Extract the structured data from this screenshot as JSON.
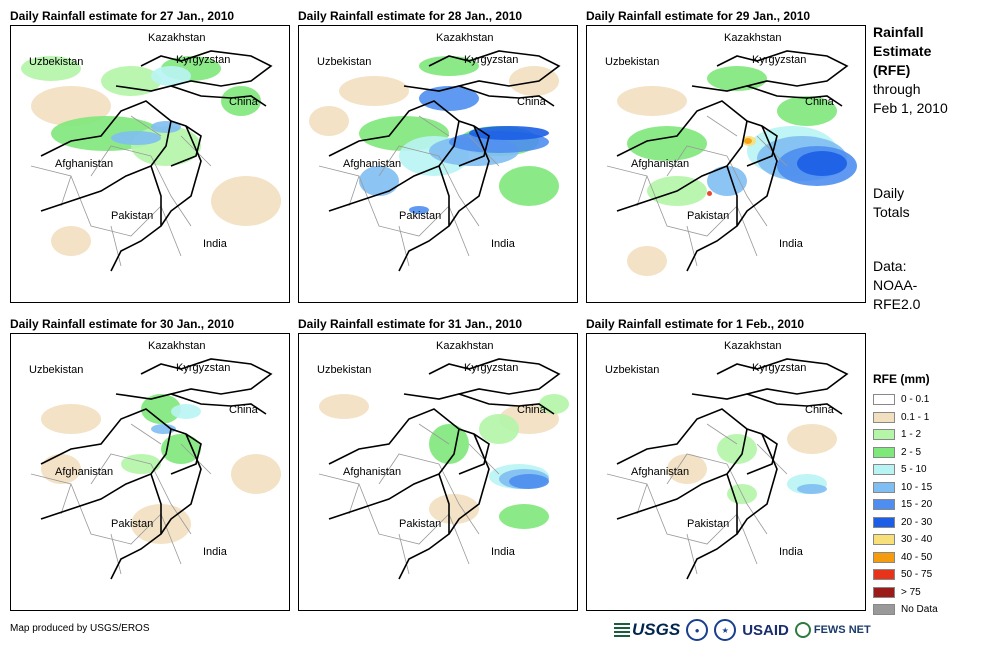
{
  "panels": [
    {
      "title": "Daily Rainfall estimate for 27 Jan., 2010",
      "pattern": "jan27"
    },
    {
      "title": "Daily Rainfall estimate for 28 Jan., 2010",
      "pattern": "jan28"
    },
    {
      "title": "Daily Rainfall estimate for 29 Jan., 2010",
      "pattern": "jan29"
    },
    {
      "title": "Daily Rainfall estimate for 30 Jan., 2010",
      "pattern": "jan30"
    },
    {
      "title": "Daily Rainfall estimate for 31 Jan., 2010",
      "pattern": "jan31"
    },
    {
      "title": "Daily Rainfall estimate for 1 Feb., 2010",
      "pattern": "feb01"
    }
  ],
  "country_labels": {
    "kazakhstan": "Kazakhstan",
    "uzbekistan": "Uzbekistan",
    "kyrgyzstan": "Kyrgyzstan",
    "china": "China",
    "afghanistan": "Afghanistan",
    "pakistan": "Pakistan",
    "india": "India"
  },
  "side_title": {
    "line1": "Rainfall",
    "line2": "Estimate",
    "line3": "(RFE)",
    "line4": "through",
    "line5": "Feb 1, 2010"
  },
  "daily_totals": {
    "line1": "Daily",
    "line2": "Totals"
  },
  "data_source": {
    "line1": "Data:",
    "line2": "NOAA-",
    "line3": "RFE2.0"
  },
  "legend": {
    "title": "RFE (mm)",
    "items": [
      {
        "label": "0 - 0.1",
        "color": "#ffffff"
      },
      {
        "label": "0.1 - 1",
        "color": "#f2dfbf"
      },
      {
        "label": "1 - 2",
        "color": "#b4f5a8"
      },
      {
        "label": "2 - 5",
        "color": "#7ee87a"
      },
      {
        "label": "5 - 10",
        "color": "#b9f4f4"
      },
      {
        "label": "10 - 15",
        "color": "#7fbef2"
      },
      {
        "label": "15 - 20",
        "color": "#4e8ef0"
      },
      {
        "label": "20 - 30",
        "color": "#1c5ee6"
      },
      {
        "label": "30 - 40",
        "color": "#f7e07a"
      },
      {
        "label": "40 - 50",
        "color": "#f59b0e"
      },
      {
        "label": "50 - 75",
        "color": "#e8331b"
      },
      {
        "label": "> 75",
        "color": "#9b1a1a"
      },
      {
        "label": "No Data",
        "color": "#999999"
      }
    ]
  },
  "credit": "Map produced by USGS/EROS",
  "logos": {
    "usgs": "USGS",
    "usaid": "USAID",
    "fews": "FEWS NET"
  }
}
